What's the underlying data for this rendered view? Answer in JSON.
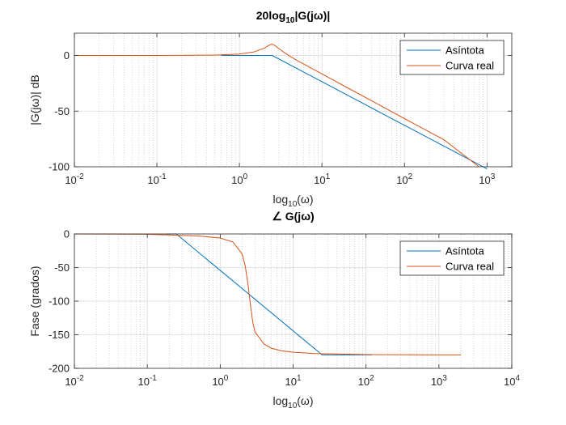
{
  "colors": {
    "asymptote": "#0072BD",
    "real": "#D95319",
    "grid": "#b8b8b8",
    "axis": "#262626"
  },
  "chart_data": [
    {
      "type": "line",
      "title_main": "20log",
      "title_sub": "10",
      "title_tail": "|G(jω)|",
      "ylabel": "|G(jω)| dB",
      "xlabel_main": "log",
      "xlabel_sub": "10",
      "xlabel_tail": "(ω)",
      "x_scale": "log",
      "xlim": [
        0.01,
        2000
      ],
      "ylim": [
        -100,
        20
      ],
      "yticks": [
        0,
        -50,
        -100
      ],
      "ytick_labels": [
        "0",
        "-50",
        "-100"
      ],
      "xtick_exponents": [
        -2,
        -1,
        0,
        1,
        2,
        3
      ],
      "grid": "on",
      "legend": "top-right",
      "legend_entries": [
        "Asíntota",
        "Curva real"
      ],
      "series": [
        {
          "name": "Asíntota",
          "x": [
            0.6,
            2.5,
            1000
          ],
          "y": [
            0,
            0,
            -101.9
          ]
        },
        {
          "name": "Curva real",
          "x": [
            0.01,
            0.1,
            0.5,
            1,
            1.5,
            2,
            2.2,
            2.4,
            2.5,
            2.6,
            2.8,
            3,
            3.5,
            4,
            5,
            7,
            10,
            20,
            50,
            100,
            300,
            800
          ],
          "y": [
            0,
            0,
            0.3,
            1.3,
            3.2,
            6.5,
            8.5,
            9.9,
            10,
            9.6,
            8.0,
            6.2,
            2.6,
            -0.2,
            -4.5,
            -10.4,
            -16.6,
            -28.7,
            -44.6,
            -56.7,
            -75.7,
            -100
          ]
        }
      ]
    },
    {
      "type": "line",
      "title_main": "∠ G(jω)",
      "ylabel": "Fase (grados)",
      "xlabel_main": "log",
      "xlabel_sub": "10",
      "xlabel_tail": "(ω)",
      "x_scale": "log",
      "xlim": [
        0.01,
        10000
      ],
      "ylim": [
        -200,
        0
      ],
      "yticks": [
        0,
        -50,
        -100,
        -150,
        -200
      ],
      "ytick_labels": [
        "0",
        "-50",
        "-100",
        "-150",
        "-200"
      ],
      "xtick_exponents": [
        -2,
        -1,
        0,
        1,
        2,
        3,
        4
      ],
      "grid": "on",
      "legend": "top-right",
      "legend_entries": [
        "Asíntota",
        "Curva real"
      ],
      "series": [
        {
          "name": "Asíntota",
          "x": [
            0.18,
            0.25,
            25,
            120
          ],
          "y": [
            0,
            0,
            -180,
            -180
          ]
        },
        {
          "name": "Curva real",
          "x": [
            0.01,
            0.1,
            0.5,
            1,
            1.5,
            2,
            2.2,
            2.4,
            2.5,
            2.6,
            2.8,
            3,
            4,
            5,
            7,
            10,
            20,
            100,
            1000,
            2000
          ],
          "y": [
            0,
            -0.5,
            -3,
            -6,
            -12,
            -30,
            -47,
            -74,
            -90,
            -106,
            -132,
            -146,
            -164,
            -170,
            -174,
            -176,
            -178,
            -179.5,
            -180,
            -180
          ]
        }
      ]
    }
  ]
}
